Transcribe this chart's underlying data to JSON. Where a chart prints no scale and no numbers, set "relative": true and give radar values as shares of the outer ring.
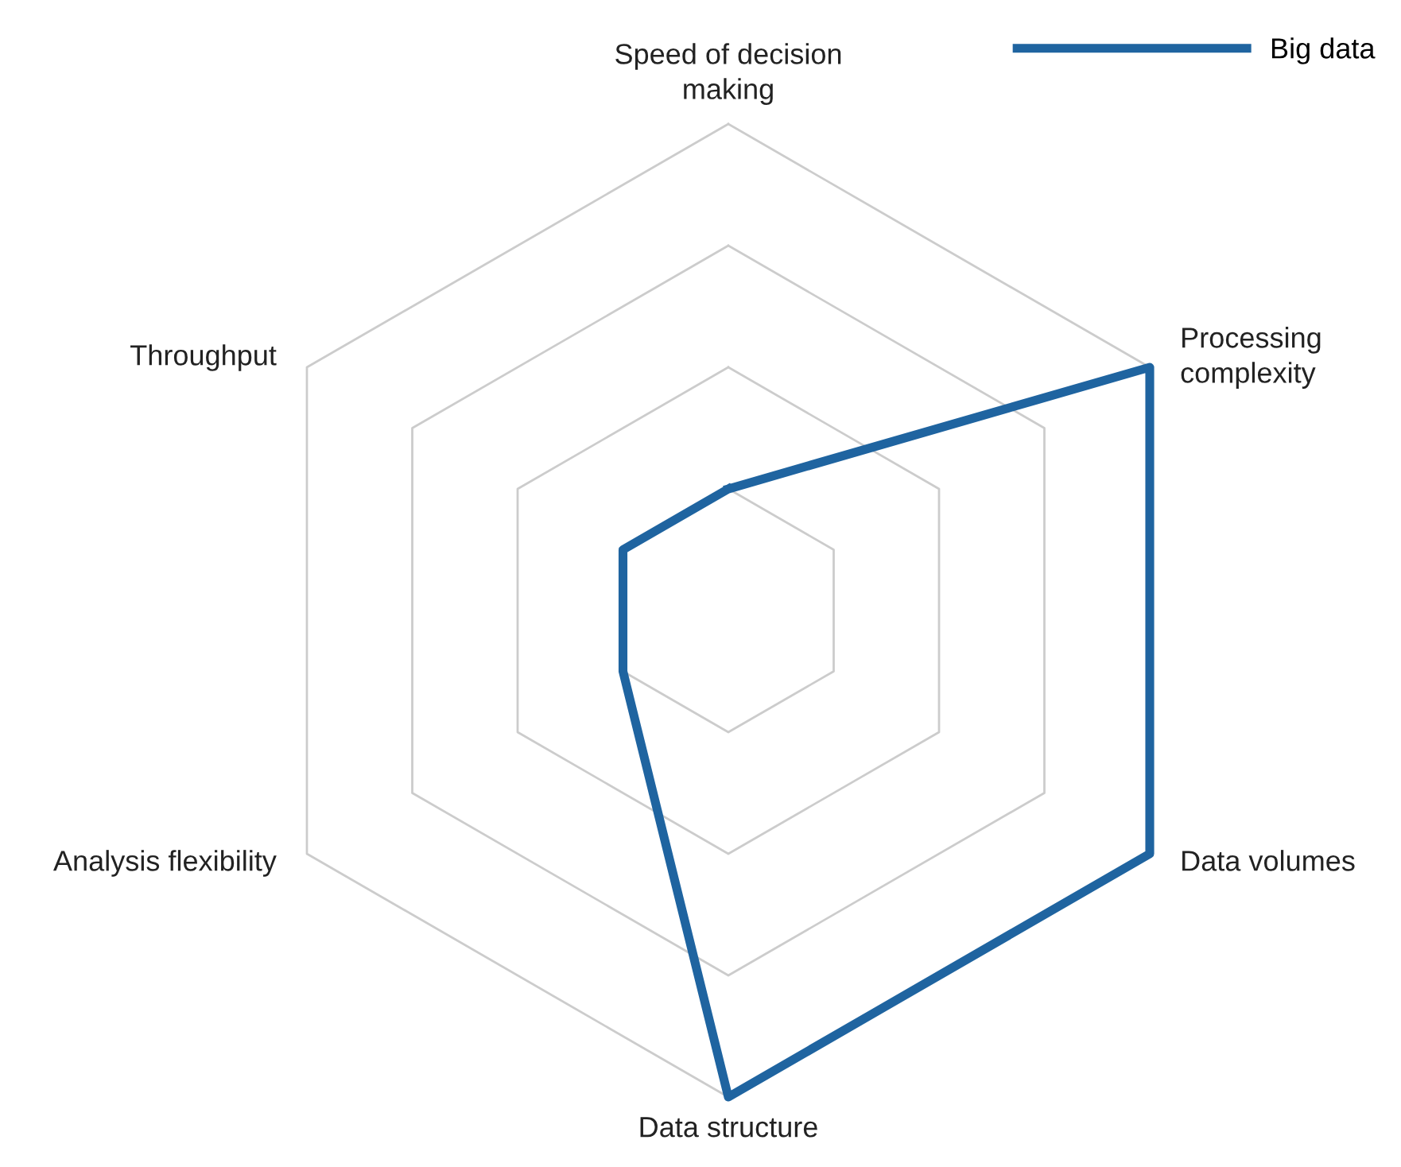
{
  "chart_data": {
    "type": "radar",
    "relative": true,
    "grid": true,
    "legend": "top right",
    "categories": [
      "Speed of decision\nmaking",
      "Processing\ncomplexity",
      "Data volumes",
      "Data structure",
      "Analysis flexibility",
      "Throughput"
    ],
    "series": [
      {
        "name": "Big data",
        "color": "#1f64a0",
        "values": [
          0.25,
          1,
          1,
          1,
          0.25,
          0.25
        ]
      }
    ]
  }
}
